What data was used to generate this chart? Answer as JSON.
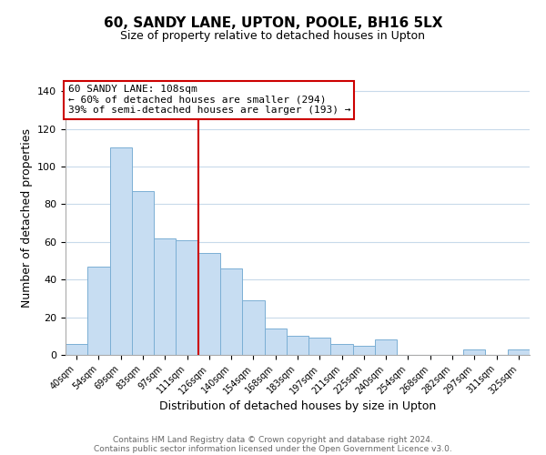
{
  "title": "60, SANDY LANE, UPTON, POOLE, BH16 5LX",
  "subtitle": "Size of property relative to detached houses in Upton",
  "xlabel": "Distribution of detached houses by size in Upton",
  "ylabel": "Number of detached properties",
  "bar_labels": [
    "40sqm",
    "54sqm",
    "69sqm",
    "83sqm",
    "97sqm",
    "111sqm",
    "126sqm",
    "140sqm",
    "154sqm",
    "168sqm",
    "183sqm",
    "197sqm",
    "211sqm",
    "225sqm",
    "240sqm",
    "254sqm",
    "268sqm",
    "282sqm",
    "297sqm",
    "311sqm",
    "325sqm"
  ],
  "bar_values": [
    6,
    47,
    110,
    87,
    62,
    61,
    54,
    46,
    29,
    14,
    10,
    9,
    6,
    5,
    8,
    0,
    0,
    0,
    3,
    0,
    3
  ],
  "bar_color": "#c7ddf2",
  "bar_edge_color": "#7bafd4",
  "vline_x": 5.5,
  "vline_color": "#cc0000",
  "ylim": [
    0,
    145
  ],
  "yticks": [
    0,
    20,
    40,
    60,
    80,
    100,
    120,
    140
  ],
  "annotation_title": "60 SANDY LANE: 108sqm",
  "annotation_line1": "← 60% of detached houses are smaller (294)",
  "annotation_line2": "39% of semi-detached houses are larger (193) →",
  "footer1": "Contains HM Land Registry data © Crown copyright and database right 2024.",
  "footer2": "Contains public sector information licensed under the Open Government Licence v3.0.",
  "background_color": "#ffffff",
  "grid_color": "#c8daea"
}
